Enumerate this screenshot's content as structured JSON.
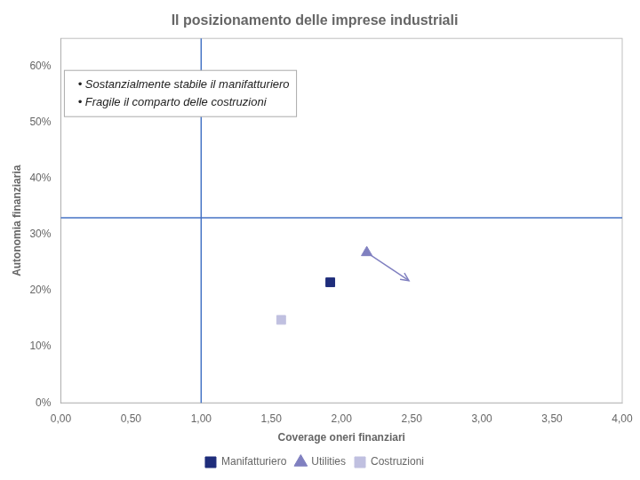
{
  "chart_data": {
    "type": "scatter",
    "title": "Il posizionamento delle imprese industriali",
    "xlabel": "Coverage oneri finanziari",
    "ylabel": "Autonomia finanziaria",
    "series": [
      {
        "name": "Manifatturiero",
        "color": "#1f2d7b",
        "marker": "square",
        "x": [
          1.92
        ],
        "values": [
          0.215
        ]
      },
      {
        "name": "Utilities",
        "color": "#8080c0",
        "marker": "triangle",
        "line_style": "arrow",
        "x": [
          2.18,
          2.48
        ],
        "values": [
          0.268,
          0.218
        ]
      },
      {
        "name": "Costruzioni",
        "color": "#c0c0e0",
        "marker": "square",
        "x": [
          1.57
        ],
        "values": [
          0.148
        ]
      }
    ],
    "vlines": [
      {
        "value": 1.0,
        "color": "#4472c4"
      }
    ],
    "hlines": [
      {
        "value": 0.33,
        "color": "#4472c4"
      }
    ],
    "annotations": [
      "  • Sostanzialmente stabile il manifatturiero",
      "  • Fragile il comparto delle costruzioni"
    ],
    "xlim": [
      0.0,
      4.0
    ],
    "ylim": [
      0.0,
      0.65
    ],
    "xticks": [
      {
        "value": 0.0,
        "label": "0,00"
      },
      {
        "value": 0.5,
        "label": "0,50"
      },
      {
        "value": 1.0,
        "label": "1,00"
      },
      {
        "value": 1.5,
        "label": "1,50"
      },
      {
        "value": 2.0,
        "label": "2,00"
      },
      {
        "value": 2.5,
        "label": "2,50"
      },
      {
        "value": 3.0,
        "label": "3,00"
      },
      {
        "value": 3.5,
        "label": "3,50"
      },
      {
        "value": 4.0,
        "label": "4,00"
      }
    ],
    "yticks": [
      {
        "value": 0.0,
        "label": "0%"
      },
      {
        "value": 0.1,
        "label": "10%"
      },
      {
        "value": 0.2,
        "label": "20%"
      },
      {
        "value": 0.3,
        "label": "30%"
      },
      {
        "value": 0.4,
        "label": "40%"
      },
      {
        "value": 0.5,
        "label": "50%"
      },
      {
        "value": 0.6,
        "label": "60%"
      }
    ],
    "grid": false,
    "legend": "bottom"
  }
}
